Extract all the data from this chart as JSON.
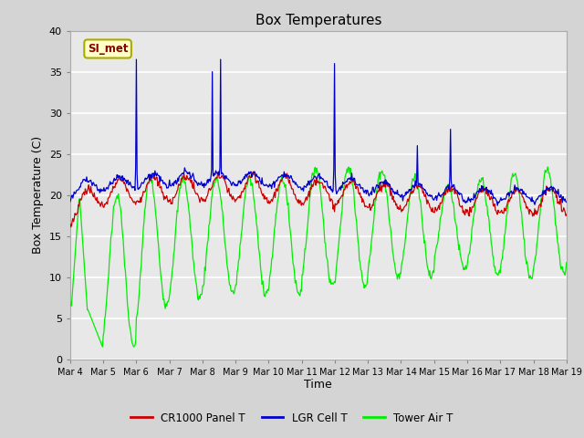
{
  "title": "Box Temperatures",
  "xlabel": "Time",
  "ylabel": "Box Temperature (C)",
  "ylim": [
    0,
    40
  ],
  "fig_bg": "#d4d4d4",
  "plot_bg": "#e8e8e8",
  "grid_color": "white",
  "series": {
    "cr1000": {
      "color": "#cc0000",
      "label": "CR1000 Panel T"
    },
    "lgr": {
      "color": "#0000cc",
      "label": "LGR Cell T"
    },
    "tower": {
      "color": "#00ee00",
      "label": "Tower Air T"
    }
  },
  "xtick_labels": [
    "Mar 4",
    "Mar 5",
    "Mar 6",
    "Mar 7",
    "Mar 8",
    "Mar 9",
    "Mar 10",
    "Mar 11",
    "Mar 12",
    "Mar 13",
    "Mar 14",
    "Mar 15",
    "Mar 16",
    "Mar 17",
    "Mar 18",
    "Mar 19"
  ],
  "legend_box_label": "SI_met",
  "legend_box_bg": "#ffffc8",
  "legend_box_edge": "#aaaa00",
  "legend_text_color": "#880000",
  "n_days": 15,
  "pts_per_day": 48
}
